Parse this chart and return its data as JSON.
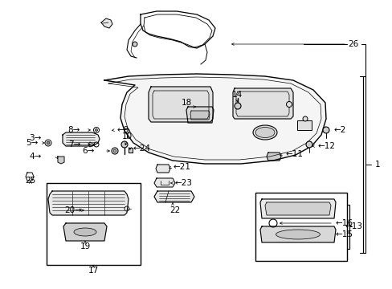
{
  "bg_color": "#ffffff",
  "line_color": "#000000",
  "fig_width": 4.89,
  "fig_height": 3.6,
  "dpi": 100,
  "label_fontsize": 7.5,
  "small_part_color": "#444444",
  "roof_fill": "#f5f5f5",
  "part_fill": "#e8e8e8"
}
